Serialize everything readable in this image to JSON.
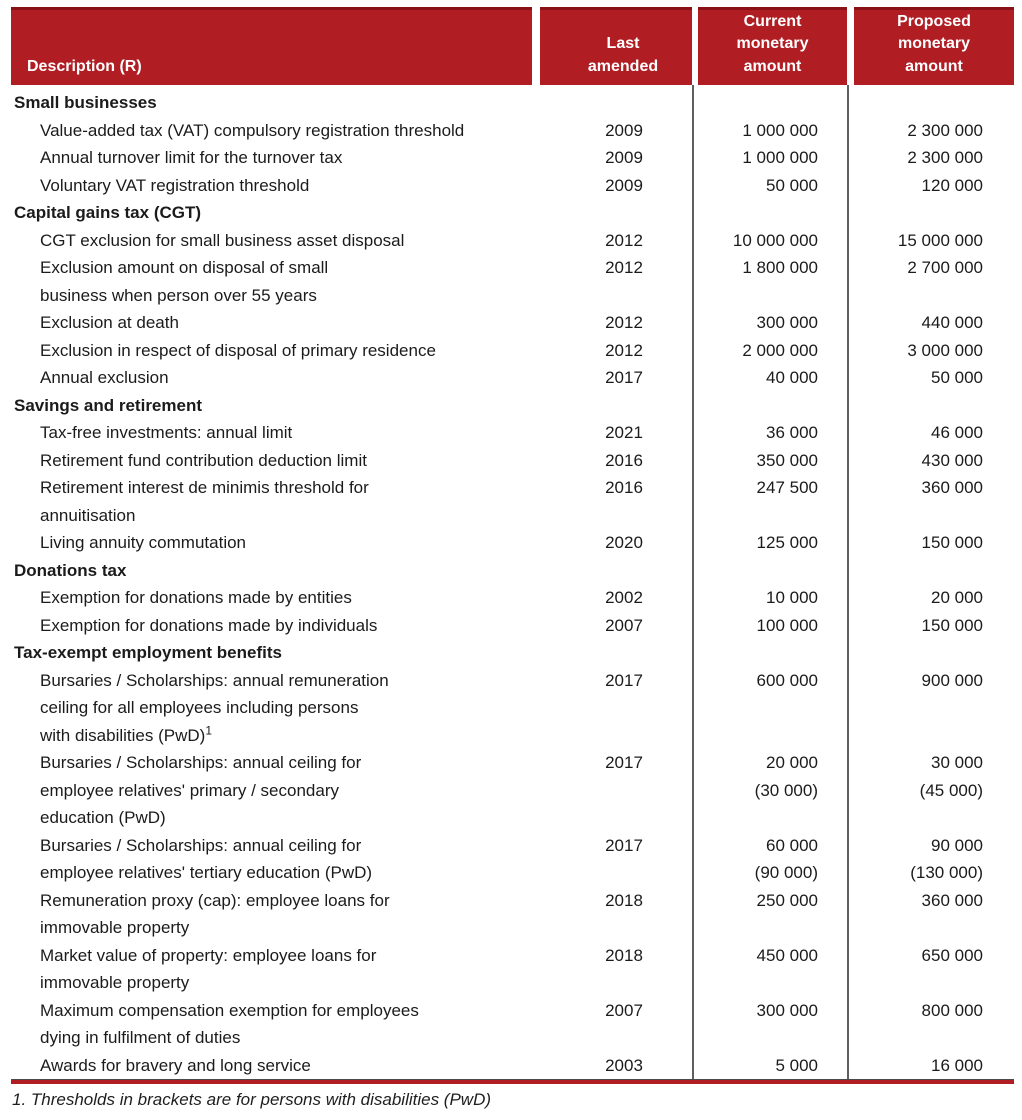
{
  "colors": {
    "header_red": "#B01E24",
    "header_top_border": "#8a1216",
    "column_rule_gray": "#5f5f5f",
    "text": "#1b1b1b"
  },
  "table": {
    "header": [
      {
        "id": "description",
        "lines": [
          "Description (R)"
        ]
      },
      {
        "id": "last-amended",
        "lines": [
          "Last",
          "amended"
        ]
      },
      {
        "id": "current",
        "lines": [
          "Current",
          "monetary",
          "amount"
        ]
      },
      {
        "id": "proposed",
        "lines": [
          "Proposed",
          "monetary",
          "amount"
        ]
      }
    ],
    "rows": [
      {
        "type": "section",
        "desc": [
          "Small businesses"
        ]
      },
      {
        "type": "item",
        "desc": [
          "Value-added tax (VAT) compulsory registration threshold"
        ],
        "amended": "2009",
        "current": [
          "1 000 000"
        ],
        "proposed": [
          "2 300 000"
        ]
      },
      {
        "type": "item",
        "desc": [
          "Annual turnover limit for the turnover tax"
        ],
        "amended": "2009",
        "current": [
          "1 000 000"
        ],
        "proposed": [
          "2 300 000"
        ]
      },
      {
        "type": "item",
        "desc": [
          "Voluntary VAT registration threshold"
        ],
        "amended": "2009",
        "current": [
          "50 000"
        ],
        "proposed": [
          "120 000"
        ]
      },
      {
        "type": "section",
        "desc": [
          "Capital gains tax (CGT)"
        ]
      },
      {
        "type": "item",
        "desc": [
          "CGT exclusion for small business asset disposal"
        ],
        "amended": "2012",
        "current": [
          "10 000 000"
        ],
        "proposed": [
          "15 000 000"
        ]
      },
      {
        "type": "item",
        "desc": [
          "Exclusion amount on disposal of small",
          "business when person over 55 years"
        ],
        "amended": "2012",
        "current": [
          "1 800 000"
        ],
        "proposed": [
          "2 700 000"
        ]
      },
      {
        "type": "item",
        "desc": [
          "Exclusion at death"
        ],
        "amended": "2012",
        "current": [
          "300 000"
        ],
        "proposed": [
          "440 000"
        ]
      },
      {
        "type": "item",
        "desc": [
          "Exclusion in respect of disposal of primary residence"
        ],
        "amended": "2012",
        "current": [
          "2 000 000"
        ],
        "proposed": [
          "3 000 000"
        ]
      },
      {
        "type": "item",
        "desc": [
          "Annual exclusion"
        ],
        "amended": "2017",
        "current": [
          "40 000"
        ],
        "proposed": [
          "50 000"
        ]
      },
      {
        "type": "section",
        "desc": [
          "Savings and retirement"
        ]
      },
      {
        "type": "item",
        "desc": [
          "Tax-free investments: annual limit"
        ],
        "amended": "2021",
        "current": [
          "36 000"
        ],
        "proposed": [
          "46 000"
        ]
      },
      {
        "type": "item",
        "desc": [
          "Retirement fund contribution deduction limit"
        ],
        "amended": "2016",
        "current": [
          "350 000"
        ],
        "proposed": [
          "430 000"
        ]
      },
      {
        "type": "item",
        "desc": [
          "Retirement interest de minimis threshold for",
          "annuitisation"
        ],
        "amended": "2016",
        "current": [
          "247 500"
        ],
        "proposed": [
          "360 000"
        ]
      },
      {
        "type": "item",
        "desc": [
          "Living annuity commutation"
        ],
        "amended": "2020",
        "current": [
          "125 000"
        ],
        "proposed": [
          "150 000"
        ]
      },
      {
        "type": "section",
        "desc": [
          "Donations tax"
        ]
      },
      {
        "type": "item",
        "desc": [
          "Exemption for donations made by entities"
        ],
        "amended": "2002",
        "current": [
          "10 000"
        ],
        "proposed": [
          "20 000"
        ]
      },
      {
        "type": "item",
        "desc": [
          "Exemption for donations made by individuals"
        ],
        "amended": "2007",
        "current": [
          "100 000"
        ],
        "proposed": [
          "150 000"
        ]
      },
      {
        "type": "section",
        "desc": [
          "Tax-exempt employment benefits"
        ]
      },
      {
        "type": "item",
        "desc": [
          "Bursaries / Scholarships: annual remuneration",
          "ceiling for all employees including persons",
          {
            "text": "with disabilities (PwD)",
            "sup": "1"
          }
        ],
        "amended": "2017",
        "current": [
          "600 000"
        ],
        "proposed": [
          "900 000"
        ]
      },
      {
        "type": "item",
        "desc": [
          "Bursaries / Scholarships: annual ceiling for",
          "employee relatives' primary / secondary",
          "education (PwD)"
        ],
        "amended": "2017",
        "current": [
          "20 000",
          "(30 000)"
        ],
        "proposed": [
          "30 000",
          "(45 000)"
        ]
      },
      {
        "type": "item",
        "desc": [
          "Bursaries / Scholarships: annual ceiling for",
          "employee relatives' tertiary education (PwD)"
        ],
        "amended": "2017",
        "current": [
          "60 000",
          "(90 000)"
        ],
        "proposed": [
          "90 000",
          "(130 000)"
        ]
      },
      {
        "type": "item",
        "desc": [
          "Remuneration proxy (cap): employee loans for",
          "immovable property"
        ],
        "amended": "2018",
        "current": [
          "250 000"
        ],
        "proposed": [
          "360 000"
        ]
      },
      {
        "type": "item",
        "desc": [
          "Market value of property: employee loans for",
          "immovable property"
        ],
        "amended": "2018",
        "current": [
          "450 000"
        ],
        "proposed": [
          "650 000"
        ]
      },
      {
        "type": "item",
        "desc": [
          "Maximum compensation exemption for employees",
          "dying in fulfilment of duties"
        ],
        "amended": "2007",
        "current": [
          "300 000"
        ],
        "proposed": [
          "800 000"
        ]
      },
      {
        "type": "item",
        "desc": [
          "Awards for bravery and long service"
        ],
        "amended": "2003",
        "current": [
          "5 000"
        ],
        "proposed": [
          "16 000"
        ]
      }
    ]
  },
  "footnote": "1. Thresholds in brackets are for persons with disabilities (PwD)"
}
